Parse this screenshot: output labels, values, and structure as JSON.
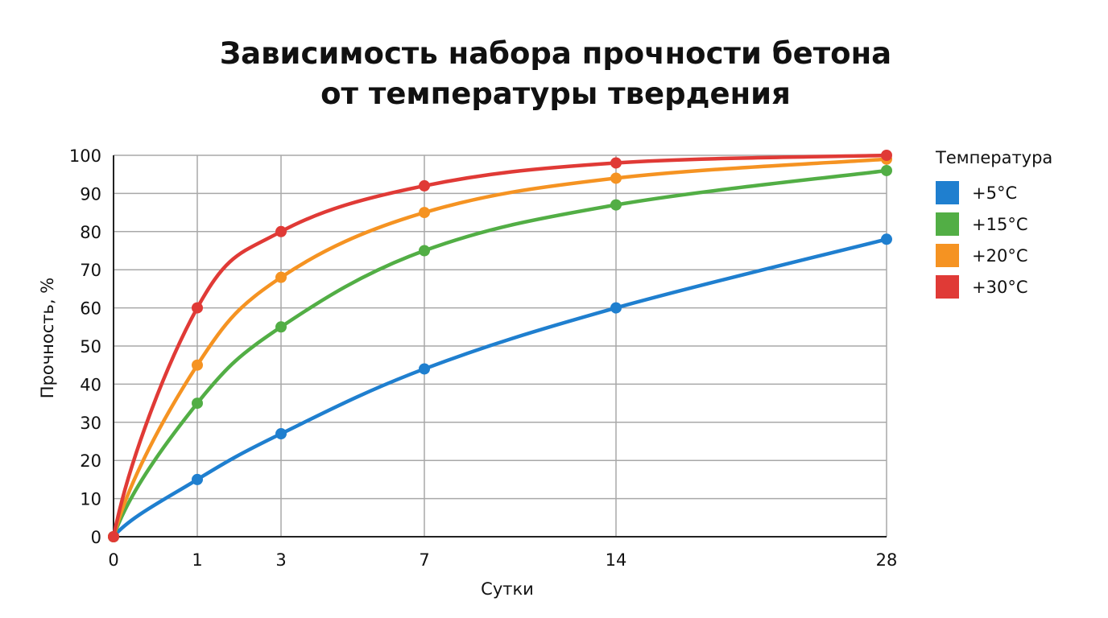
{
  "title_line1": "Зависимость набора прочности бетона",
  "title_line2": "от температуры твердения",
  "legend": {
    "title": "Температура",
    "items": [
      {
        "label": "+5°C",
        "color": "#1f7fcf"
      },
      {
        "label": "+15°C",
        "color": "#52ae45"
      },
      {
        "label": "+20°C",
        "color": "#f59322"
      },
      {
        "label": "+30°C",
        "color": "#e03a36"
      }
    ]
  },
  "axes": {
    "xlabel": "Сутки",
    "ylabel": "Прочность, %",
    "xticks": [
      "0",
      "1",
      "3",
      "7",
      "14",
      "28"
    ],
    "yticks": [
      "0",
      "10",
      "20",
      "30",
      "40",
      "50",
      "60",
      "70",
      "80",
      "90",
      "100"
    ]
  },
  "chart_data": {
    "type": "line",
    "title": "Зависимость набора прочности бетона от температуры твердения",
    "xlabel": "Сутки",
    "ylabel": "Прочность, %",
    "x": [
      0,
      1,
      3,
      7,
      14,
      28
    ],
    "ylim": [
      0,
      100
    ],
    "grid": true,
    "legend_title": "Температура",
    "legend_position": "right",
    "series": [
      {
        "name": "+5°C",
        "color": "#1f7fcf",
        "values": [
          0,
          15,
          27,
          44,
          60,
          78
        ]
      },
      {
        "name": "+15°C",
        "color": "#52ae45",
        "values": [
          0,
          35,
          55,
          75,
          87,
          96
        ]
      },
      {
        "name": "+20°C",
        "color": "#f59322",
        "values": [
          0,
          45,
          68,
          85,
          94,
          99
        ]
      },
      {
        "name": "+30°C",
        "color": "#e03a36",
        "values": [
          0,
          60,
          80,
          92,
          98,
          100
        ]
      }
    ]
  }
}
